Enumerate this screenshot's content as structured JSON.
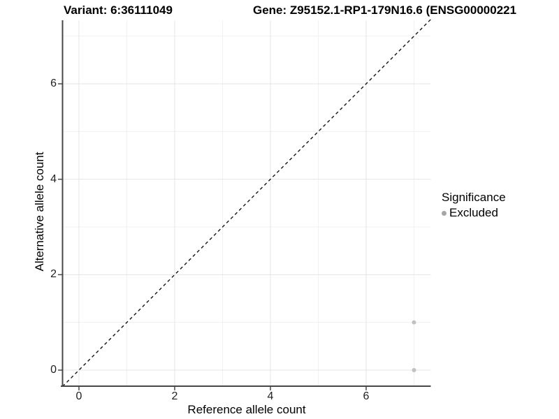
{
  "titles": {
    "variant": "Variant: 6:36111049",
    "gene": "Gene: Z95152.1-RP1-179N16.6 (ENSG00000221"
  },
  "axes": {
    "x": {
      "label": "Reference allele count",
      "tick_labels": [
        "0",
        "2",
        "4",
        "6"
      ]
    },
    "y": {
      "label": "Alternative allele count",
      "tick_labels": [
        "0",
        "2",
        "4",
        "6"
      ]
    }
  },
  "legend": {
    "title": "Significance",
    "items": [
      {
        "label": "Excluded",
        "color": "#a6a6a6"
      }
    ]
  },
  "chart_data": {
    "type": "scatter",
    "title_left": "Variant: 6:36111049",
    "title_right": "Gene: Z95152.1-RP1-179N16.6 (ENSG00000221",
    "xlabel": "Reference allele count",
    "ylabel": "Alternative allele count",
    "xlim": [
      -0.35,
      7.35
    ],
    "ylim": [
      -0.35,
      7.35
    ],
    "x_ticks": [
      0,
      2,
      4,
      6
    ],
    "y_ticks": [
      0,
      2,
      4,
      6
    ],
    "x_minor_ticks": [
      1,
      3,
      5,
      7
    ],
    "y_minor_ticks": [
      1,
      3,
      5,
      7
    ],
    "grid": "major+minor",
    "legend_position": "right",
    "series": [
      {
        "name": "Excluded",
        "color": "#c2c2c2",
        "points": [
          [
            7,
            0
          ],
          [
            7,
            1
          ]
        ]
      }
    ],
    "reference_line": {
      "type": "identity y=x",
      "style": "dashed",
      "color": "#141414"
    }
  },
  "colors": {
    "background": "#ffffff",
    "grid_major": "#e4e4e4",
    "grid_minor": "#f1f1f1",
    "axis_line": "#474747",
    "tick_mark": "#474747",
    "tick_text": "#1f1f1f",
    "point": "#c2c2c2",
    "dashed_line": "#141414"
  }
}
